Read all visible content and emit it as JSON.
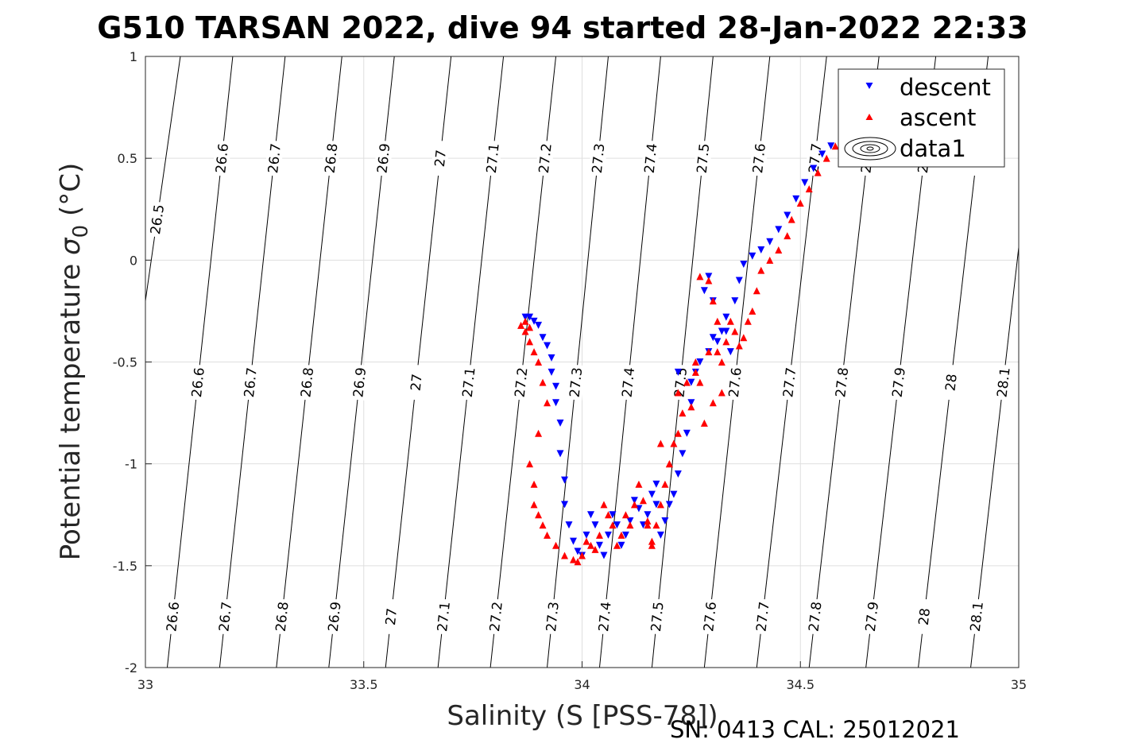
{
  "chart_data": {
    "type": "scatter",
    "title": "G510 TARSAN 2022, dive 94 started 28-Jan-2022 22:33",
    "xlabel": "Salinity (S [PSS-78])",
    "ylabel_main": "Potential temperature ",
    "ylabel_sym": "σ",
    "ylabel_sub": "0",
    "ylabel_unit": " (°C)",
    "footer": "SN: 0413  CAL: 25012021",
    "xlim": [
      33,
      35
    ],
    "ylim": [
      -2,
      1
    ],
    "xticks": [
      33,
      33.5,
      34,
      34.5,
      35
    ],
    "xtick_labels": [
      "33",
      "33.5",
      "34",
      "34.5",
      "35"
    ],
    "yticks": [
      -2,
      -1.5,
      -1,
      -0.5,
      0,
      0.5,
      1
    ],
    "ytick_labels": [
      "-2",
      "-1.5",
      "-1",
      "-0.5",
      "0",
      "0.5",
      "1"
    ],
    "grid": true,
    "legend_position": "top-right",
    "legend": [
      "descent",
      "ascent",
      "data1"
    ],
    "isopycnals": {
      "labels": [
        "26.5",
        "26.6",
        "26.7",
        "26.8",
        "26.9",
        "27",
        "27.1",
        "27.2",
        "27.3",
        "27.4",
        "27.5",
        "27.6",
        "27.7",
        "27.8",
        "27.9",
        "28",
        "28.1"
      ],
      "salinity_at_theta_minus2": [
        32.88,
        33.05,
        33.17,
        33.3,
        33.42,
        33.55,
        33.67,
        33.79,
        33.92,
        34.04,
        34.16,
        34.28,
        34.4,
        34.52,
        34.65,
        34.77,
        34.89
      ],
      "salinity_at_theta_plus1": [
        33.08,
        33.2,
        33.32,
        33.45,
        33.57,
        33.7,
        33.82,
        33.94,
        34.06,
        34.18,
        34.3,
        34.43,
        34.56,
        34.68,
        34.81,
        34.93,
        35.05
      ]
    },
    "series": [
      {
        "name": "descent",
        "marker": "triangle-down",
        "color": "#0000ff",
        "x": [
          34.57,
          34.55,
          34.53,
          34.51,
          34.49,
          34.47,
          34.45,
          34.43,
          34.41,
          34.39,
          34.37,
          34.36,
          34.35,
          34.33,
          34.32,
          34.31,
          34.3,
          34.29,
          34.27,
          34.26,
          34.25,
          34.24,
          34.23,
          34.22,
          34.21,
          34.2,
          34.19,
          34.18,
          34.17,
          34.17,
          34.16,
          34.15,
          34.14,
          34.13,
          34.12,
          34.11,
          34.1,
          34.09,
          34.08,
          34.07,
          34.06,
          34.05,
          34.04,
          34.03,
          34.02,
          34.01,
          34.0,
          33.99,
          33.98,
          33.97,
          33.96,
          33.96,
          33.95,
          33.95,
          33.94,
          33.94,
          33.93,
          33.93,
          33.92,
          33.91,
          33.9,
          33.89,
          33.88,
          33.87,
          34.28,
          34.29,
          34.3,
          34.33,
          34.34,
          34.22,
          34.25
        ],
        "y": [
          0.56,
          0.52,
          0.45,
          0.38,
          0.3,
          0.22,
          0.15,
          0.09,
          0.05,
          0.02,
          -0.02,
          -0.1,
          -0.2,
          -0.28,
          -0.35,
          -0.4,
          -0.38,
          -0.45,
          -0.5,
          -0.55,
          -0.7,
          -0.85,
          -0.95,
          -1.05,
          -1.15,
          -1.2,
          -1.28,
          -1.35,
          -1.2,
          -1.1,
          -1.15,
          -1.25,
          -1.3,
          -1.22,
          -1.18,
          -1.28,
          -1.35,
          -1.4,
          -1.3,
          -1.25,
          -1.35,
          -1.45,
          -1.4,
          -1.3,
          -1.25,
          -1.35,
          -1.45,
          -1.43,
          -1.38,
          -1.3,
          -1.2,
          -1.08,
          -0.95,
          -0.8,
          -0.7,
          -0.62,
          -0.55,
          -0.48,
          -0.42,
          -0.38,
          -0.32,
          -0.3,
          -0.28,
          -0.28,
          -0.15,
          -0.08,
          -0.2,
          -0.35,
          -0.45,
          -0.55,
          -0.6
        ]
      },
      {
        "name": "ascent",
        "marker": "triangle-up",
        "color": "#ff0000",
        "x": [
          34.58,
          34.56,
          34.54,
          34.52,
          34.5,
          34.48,
          34.47,
          34.45,
          34.43,
          34.41,
          34.4,
          34.39,
          34.38,
          34.37,
          34.36,
          34.35,
          34.34,
          34.33,
          34.32,
          34.31,
          34.31,
          34.3,
          34.29,
          34.27,
          34.26,
          34.24,
          34.23,
          34.22,
          34.21,
          34.2,
          34.19,
          34.18,
          34.17,
          34.16,
          34.15,
          34.14,
          34.13,
          34.12,
          34.11,
          34.1,
          34.09,
          34.08,
          34.07,
          34.06,
          34.05,
          34.04,
          34.03,
          34.02,
          34.01,
          34.0,
          33.99,
          33.98,
          33.96,
          33.94,
          33.92,
          33.91,
          33.9,
          33.89,
          33.89,
          33.88,
          33.9,
          33.92,
          33.91,
          33.9,
          33.89,
          33.88,
          33.87,
          33.86,
          33.87,
          33.88,
          34.27,
          34.3,
          34.28,
          34.25,
          34.22,
          34.26,
          34.29,
          34.32,
          34.18,
          34.2,
          34.15,
          34.16
        ],
        "y": [
          0.56,
          0.5,
          0.43,
          0.35,
          0.28,
          0.2,
          0.12,
          0.05,
          0.0,
          -0.05,
          -0.15,
          -0.25,
          -0.3,
          -0.38,
          -0.42,
          -0.35,
          -0.3,
          -0.4,
          -0.5,
          -0.45,
          -0.3,
          -0.2,
          -0.1,
          -0.08,
          -0.5,
          -0.6,
          -0.75,
          -0.85,
          -0.9,
          -1.0,
          -1.1,
          -1.2,
          -1.3,
          -1.38,
          -1.28,
          -1.18,
          -1.1,
          -1.2,
          -1.3,
          -1.25,
          -1.35,
          -1.4,
          -1.3,
          -1.25,
          -1.2,
          -1.35,
          -1.42,
          -1.4,
          -1.38,
          -1.45,
          -1.48,
          -1.47,
          -1.45,
          -1.4,
          -1.35,
          -1.3,
          -1.25,
          -1.2,
          -1.1,
          -1.0,
          -0.85,
          -0.7,
          -0.6,
          -0.5,
          -0.45,
          -0.4,
          -0.35,
          -0.32,
          -0.3,
          -0.33,
          -0.6,
          -0.7,
          -0.8,
          -0.72,
          -0.65,
          -0.55,
          -0.45,
          -0.65,
          -0.9,
          -1.0,
          -1.3,
          -1.4
        ]
      }
    ]
  }
}
